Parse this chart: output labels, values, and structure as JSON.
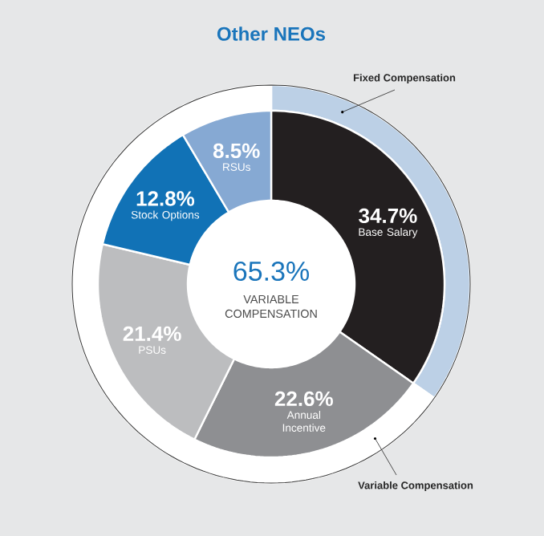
{
  "chart_data": {
    "type": "donut",
    "title": "Other NEOs",
    "categories": [
      "Base Salary",
      "Annual Incentive",
      "PSUs",
      "Stock Options",
      "RSUs"
    ],
    "series": [
      {
        "values": [
          34.7,
          22.6,
          21.4,
          12.8,
          8.5
        ],
        "colors": [
          "#231f20",
          "#8e8f92",
          "#bcbdbf",
          "#1172b6",
          "#86a9d3"
        ],
        "value_labels": [
          "34.7%",
          "22.6%",
          "21.4%",
          "12.8%",
          "8.5%"
        ]
      },
      {
        "values": [
          34.7,
          22.6,
          21.4,
          12.8,
          8.5
        ],
        "colors": [
          "#bcd0e6",
          "#ffffff",
          "#ffffff",
          "#ffffff",
          "#ffffff"
        ]
      }
    ],
    "annotations": [
      "65.3%",
      "VARIABLE COMPENSATION",
      "Fixed Compensation",
      "Variable Compensation"
    ]
  }
}
